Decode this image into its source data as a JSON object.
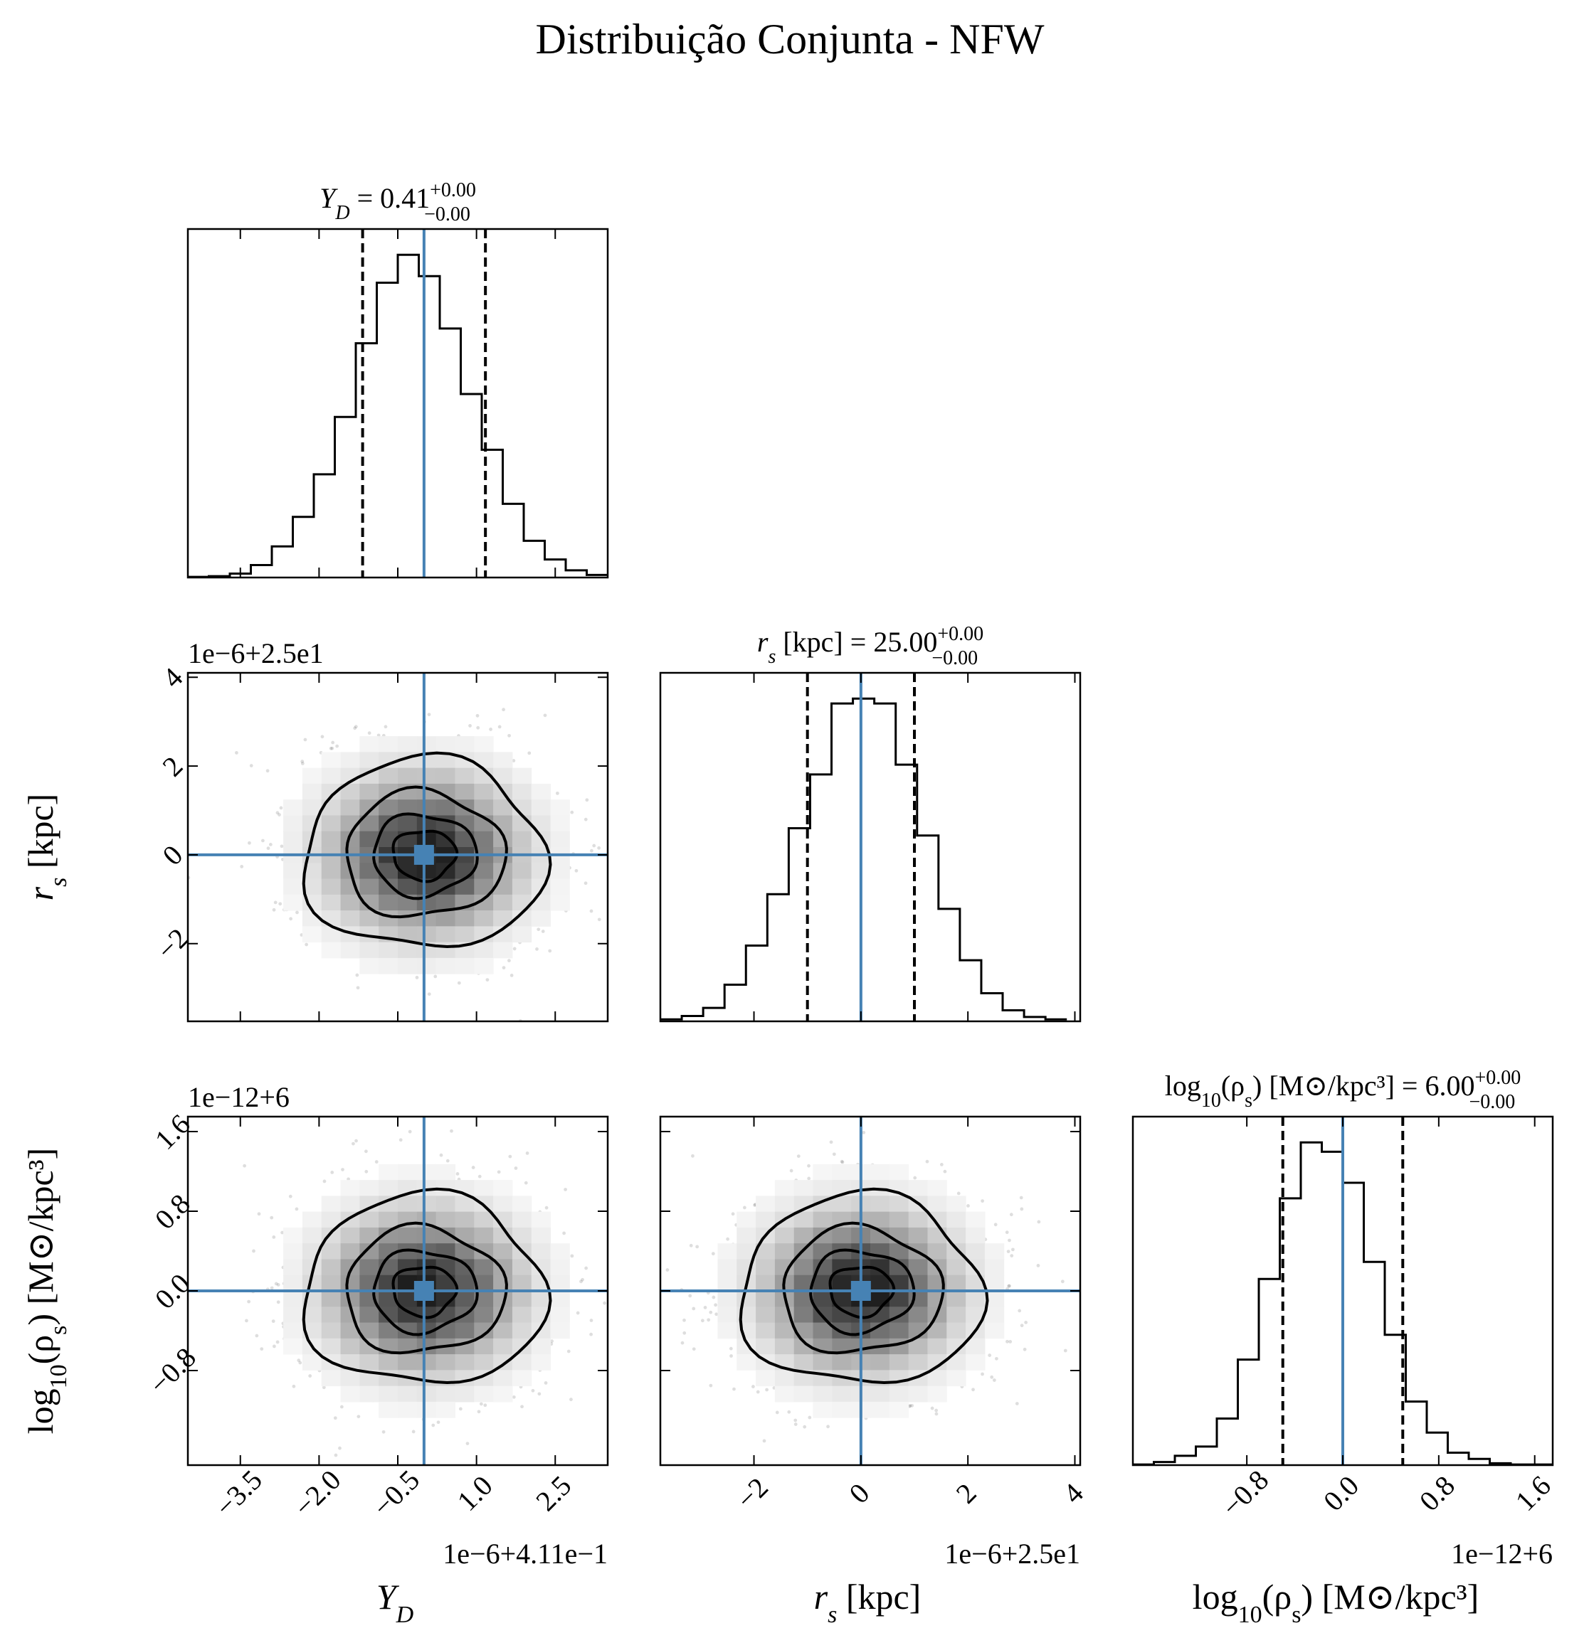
{
  "title": "Distribuição Conjunta - NFW",
  "params": [
    {
      "label": "Y",
      "label_sub": "D",
      "axis_label": "Y",
      "axis_label_sub": "D",
      "title_value": "0.41",
      "title_plus": "+0.00",
      "title_minus": "−0.00",
      "offset_text": "1e−6+4.11e−1",
      "truth": 0.0,
      "ticks": [
        -3.5,
        -2.0,
        -0.5,
        1.0,
        2.5
      ],
      "tick_labels": [
        "−3.5",
        "−2.0",
        "−0.5",
        "1.0",
        "2.5"
      ],
      "range": [
        -4.5,
        3.5
      ],
      "quantiles": [
        -1.17,
        1.17
      ]
    },
    {
      "label": "r",
      "label_sub": "s",
      "label_suffix": " [kpc]",
      "title_value": "25.00",
      "title_plus": "+0.00",
      "title_minus": "−0.00",
      "offset_text": "1e−6+2.5e1",
      "truth": 0.0,
      "ticks": [
        -2,
        0,
        2,
        4
      ],
      "tick_labels": [
        "−2",
        "0",
        "2",
        "4"
      ],
      "range": [
        -3.75,
        4.1
      ],
      "quantiles": [
        -1.0,
        1.0
      ]
    },
    {
      "label": "log",
      "label_sub": "10",
      "label_suffix": "(ρ",
      "label_suffix_sub": "s",
      "label_tail": ") [M⊙/kpc³]",
      "title_value": "6.00",
      "title_plus": "+0.00",
      "title_minus": "−0.00",
      "offset_text": "1e−12+6",
      "truth": 0.0,
      "ticks": [
        -0.8,
        0.0,
        0.8,
        1.6
      ],
      "tick_labels": [
        "−0.8",
        "0.0",
        "0.8",
        "1.6"
      ],
      "range": [
        -1.75,
        1.75
      ],
      "quantiles": [
        -0.5,
        0.5
      ]
    }
  ],
  "chart_data": {
    "type": "corner",
    "title": "Distribuição Conjunta - NFW",
    "truth_color": "#4682b4",
    "histograms": [
      {
        "param": "Y_D",
        "bin_edges": [
          -4.5,
          -4.1,
          -3.7,
          -3.3,
          -2.9,
          -2.5,
          -2.1,
          -1.7,
          -1.3,
          -0.9,
          -0.5,
          -0.1,
          0.3,
          0.7,
          1.1,
          1.5,
          1.9,
          2.3,
          2.7,
          3.1,
          3.5
        ],
        "counts": [
          2,
          4,
          12,
          38,
          95,
          185,
          315,
          490,
          715,
          900,
          985,
          920,
          760,
          560,
          390,
          225,
          112,
          55,
          22,
          8
        ]
      },
      {
        "param": "r_s",
        "bin_edges": [
          -3.75,
          -3.35,
          -2.95,
          -2.55,
          -2.15,
          -1.75,
          -1.35,
          -0.95,
          -0.55,
          -0.15,
          0.25,
          0.65,
          1.05,
          1.45,
          1.85,
          2.25,
          2.65,
          3.05,
          3.45,
          3.85
        ],
        "counts": [
          8,
          22,
          55,
          150,
          310,
          520,
          790,
          1010,
          1300,
          1320,
          1300,
          1050,
          760,
          460,
          250,
          115,
          45,
          18,
          8
        ]
      },
      {
        "param": "log10_rho_s",
        "bin_edges": [
          -1.75,
          -1.575,
          -1.4,
          -1.225,
          -1.05,
          -0.875,
          -0.7,
          -0.525,
          -0.35,
          -0.175,
          0.0,
          0.175,
          0.35,
          0.525,
          0.7,
          0.875,
          1.05,
          1.225,
          1.4,
          1.575,
          1.75
        ],
        "counts": [
          2,
          10,
          30,
          60,
          150,
          340,
          600,
          860,
          1040,
          1010,
          910,
          655,
          420,
          205,
          105,
          40,
          20,
          6,
          2,
          2
        ]
      }
    ],
    "contour_levels_sigma": [
      0.5,
      1.0,
      1.5,
      2.0
    ]
  }
}
